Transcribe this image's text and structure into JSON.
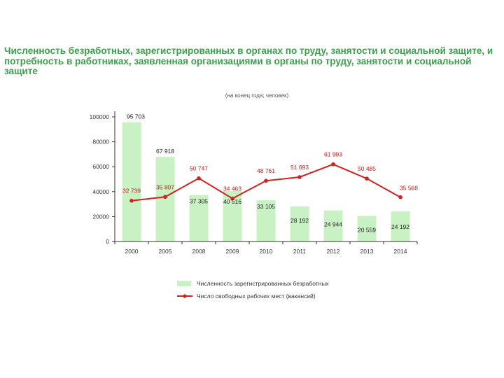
{
  "page": {
    "title": "Численность безработных, зарегистрированных в органах по труду, занятости и социальной защите, и потребность в работниках, заявленная организациями в органы по труду, занятости и социальной защите"
  },
  "colors": {
    "title": "#3aa04a",
    "bar": "#c9f2c4",
    "line": "#d42020",
    "axis": "#333333",
    "line_label": "#c81e1e",
    "bar_label": "#222222"
  },
  "chart_data": {
    "type": "bar",
    "subtitle": "(на конец года; человек)",
    "categories": [
      "2000",
      "2005",
      "2008",
      "2009",
      "2010",
      "2011",
      "2012",
      "2013",
      "2014"
    ],
    "y_ticks": [
      "0",
      "20000",
      "40000",
      "60000",
      "80000",
      "100000"
    ],
    "ylim": [
      0,
      100000
    ],
    "grid": false,
    "legend_position": "bottom",
    "series": [
      {
        "name": "Численность зарегистрированных безработных",
        "type": "bar",
        "values": [
          95703,
          67918,
          37305,
          40516,
          33105,
          28192,
          24944,
          20559,
          24192
        ],
        "labels": [
          "95 703",
          "67 918",
          "37 305",
          "40 516",
          "33 105",
          "28 192",
          "24 944",
          "20 559",
          "24 192"
        ]
      },
      {
        "name": "Число свободных рабочих мест (вакансий)",
        "type": "line",
        "values": [
          32739,
          35807,
          50747,
          34463,
          48761,
          51693,
          61993,
          50485,
          35568
        ],
        "labels": [
          "32 739",
          "35 807",
          "50 747",
          "34 463",
          "48 761",
          "51 693",
          "61 993",
          "50 485",
          "35 568"
        ]
      }
    ]
  }
}
